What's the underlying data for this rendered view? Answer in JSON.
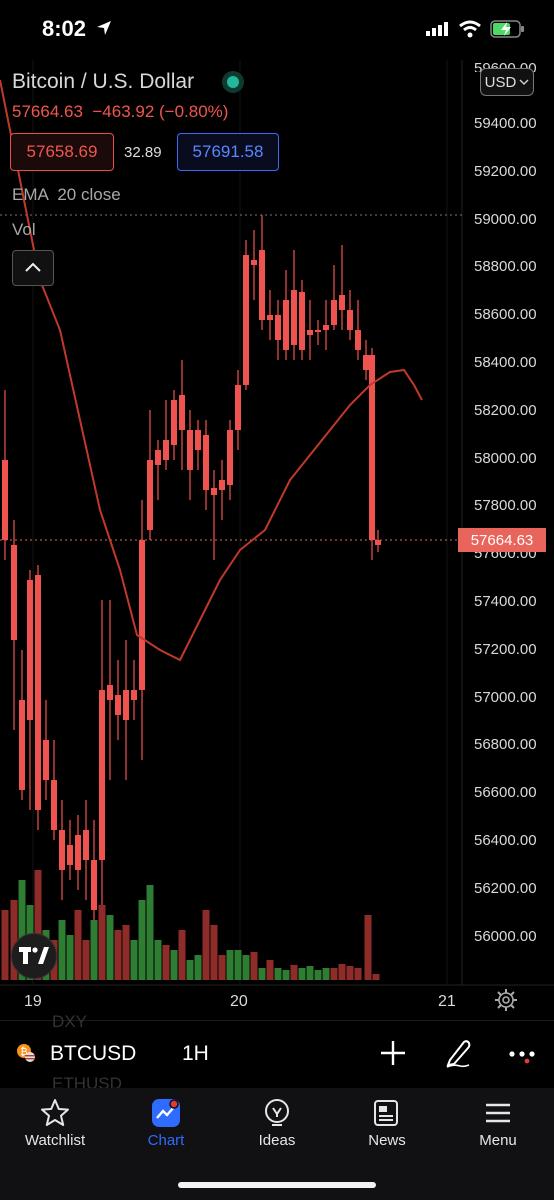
{
  "status_bar": {
    "time": "8:02"
  },
  "chart": {
    "title": "Bitcoin / U.S. Dollar",
    "price_line": "57664.63  −463.92 (−0.80%)",
    "bid": "57658.69",
    "spread": "32.89",
    "ask": "57691.58",
    "currency": "USD",
    "indicator_ema": "EMA  20 close",
    "indicator_vol": "Vol",
    "last_price_tag": "57664.63",
    "y_axis_labels": [
      "59400.00",
      "59200.00",
      "59000.00",
      "58800.00",
      "58600.00",
      "58400.00",
      "58200.00",
      "58000.00",
      "57800.00",
      "57600.00",
      "57400.00",
      "57200.00",
      "57000.00",
      "56800.00",
      "56600.00",
      "56400.00",
      "56200.00",
      "56000.00"
    ],
    "top_partial_label": "59600.00",
    "x_axis_labels": [
      "19",
      "20",
      "21"
    ],
    "colors": {
      "up": "#26a69a",
      "down": "#ef5350",
      "ema": "#c0392b",
      "last_price": "#e9655c",
      "accent": "#2f6bff"
    }
  },
  "symbol_bar": {
    "ghost_above": "DXY",
    "ticker": "BTCUSD",
    "ghost_below": "ETHUSD",
    "interval": "1H"
  },
  "tabs": [
    {
      "label": "Watchlist",
      "icon": "star-icon",
      "active": false
    },
    {
      "label": "Chart",
      "icon": "chart-icon",
      "active": true
    },
    {
      "label": "Ideas",
      "icon": "lightbulb-icon",
      "active": false
    },
    {
      "label": "News",
      "icon": "newspaper-icon",
      "active": false
    },
    {
      "label": "Menu",
      "icon": "hamburger-icon",
      "active": false
    }
  ]
}
